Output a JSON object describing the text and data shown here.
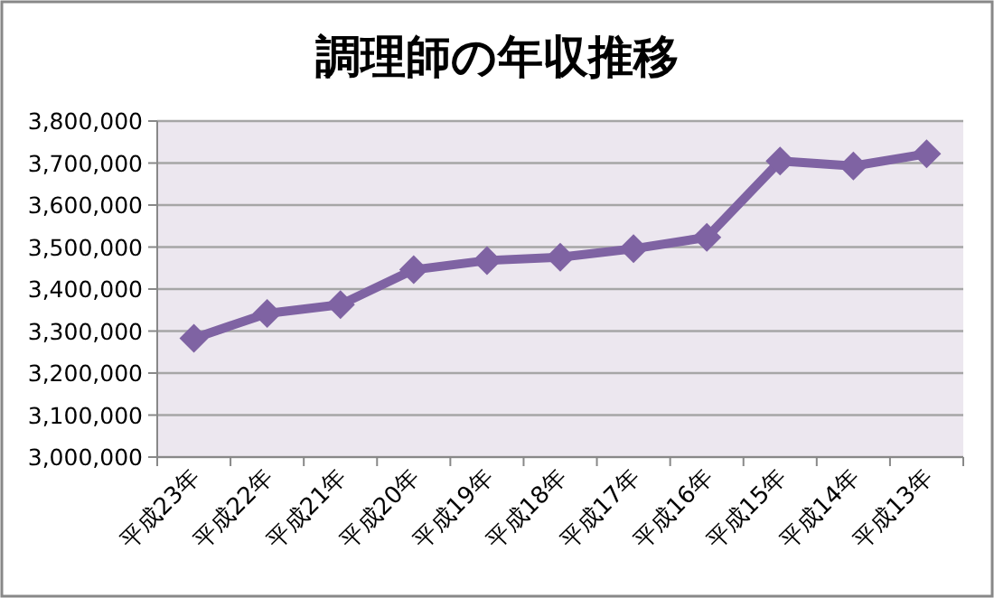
{
  "chart_data": {
    "type": "line",
    "title": "調理師の年収推移",
    "categories": [
      "平成23年",
      "平成22年",
      "平成21年",
      "平成20年",
      "平成19年",
      "平成18年",
      "平成17年",
      "平成16年",
      "平成15年",
      "平成14年",
      "平成13年"
    ],
    "series": [
      {
        "color": "#7f63a3",
        "values": [
          3283000,
          3342000,
          3363000,
          3446000,
          3468000,
          3476000,
          3496000,
          3523000,
          3705000,
          3693000,
          3722000
        ]
      }
    ],
    "ylim": [
      3000000,
      3800000
    ],
    "yticks": [
      {
        "value": 3000000,
        "label": "3,000,000"
      },
      {
        "value": 3100000,
        "label": "3,100,000"
      },
      {
        "value": 3200000,
        "label": "3,200,000"
      },
      {
        "value": 3300000,
        "label": "3,300,000"
      },
      {
        "value": 3400000,
        "label": "3,400,000"
      },
      {
        "value": 3500000,
        "label": "3,500,000"
      },
      {
        "value": 3600000,
        "label": "3,600,000"
      },
      {
        "value": 3700000,
        "label": "3,700,000"
      },
      {
        "value": 3800000,
        "label": "3,800,000"
      }
    ],
    "grid": "y",
    "marker": "diamond",
    "line_style": "solid"
  }
}
